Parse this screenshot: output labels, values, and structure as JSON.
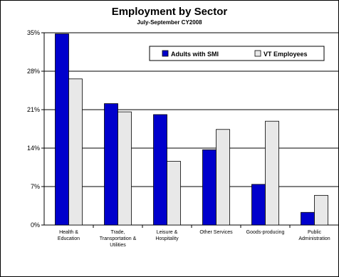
{
  "chart_data": {
    "type": "bar",
    "title": "Employment by Sector",
    "subtitle": "July-September CY2008",
    "categories": [
      [
        "Health &",
        "Education"
      ],
      [
        "Trade,",
        "Transportation &",
        "Utilities"
      ],
      [
        "Leisure &",
        "Hospitality"
      ],
      [
        "Other Services"
      ],
      [
        "Goods-producing"
      ],
      [
        "Public",
        "Administration"
      ]
    ],
    "series": [
      {
        "name": "Adults with SMI",
        "color": "#0000cc",
        "values": [
          34.8,
          22.1,
          20.1,
          13.7,
          7.4,
          2.3
        ]
      },
      {
        "name": "VT Employees",
        "color": "#e8e8e8",
        "values": [
          26.6,
          20.6,
          11.6,
          17.4,
          18.9,
          5.4
        ]
      }
    ],
    "yticks": [
      "0%",
      "7%",
      "14%",
      "21%",
      "28%",
      "35%"
    ],
    "ylim": [
      0,
      35
    ],
    "grid": true,
    "legend_position": "top-right"
  }
}
